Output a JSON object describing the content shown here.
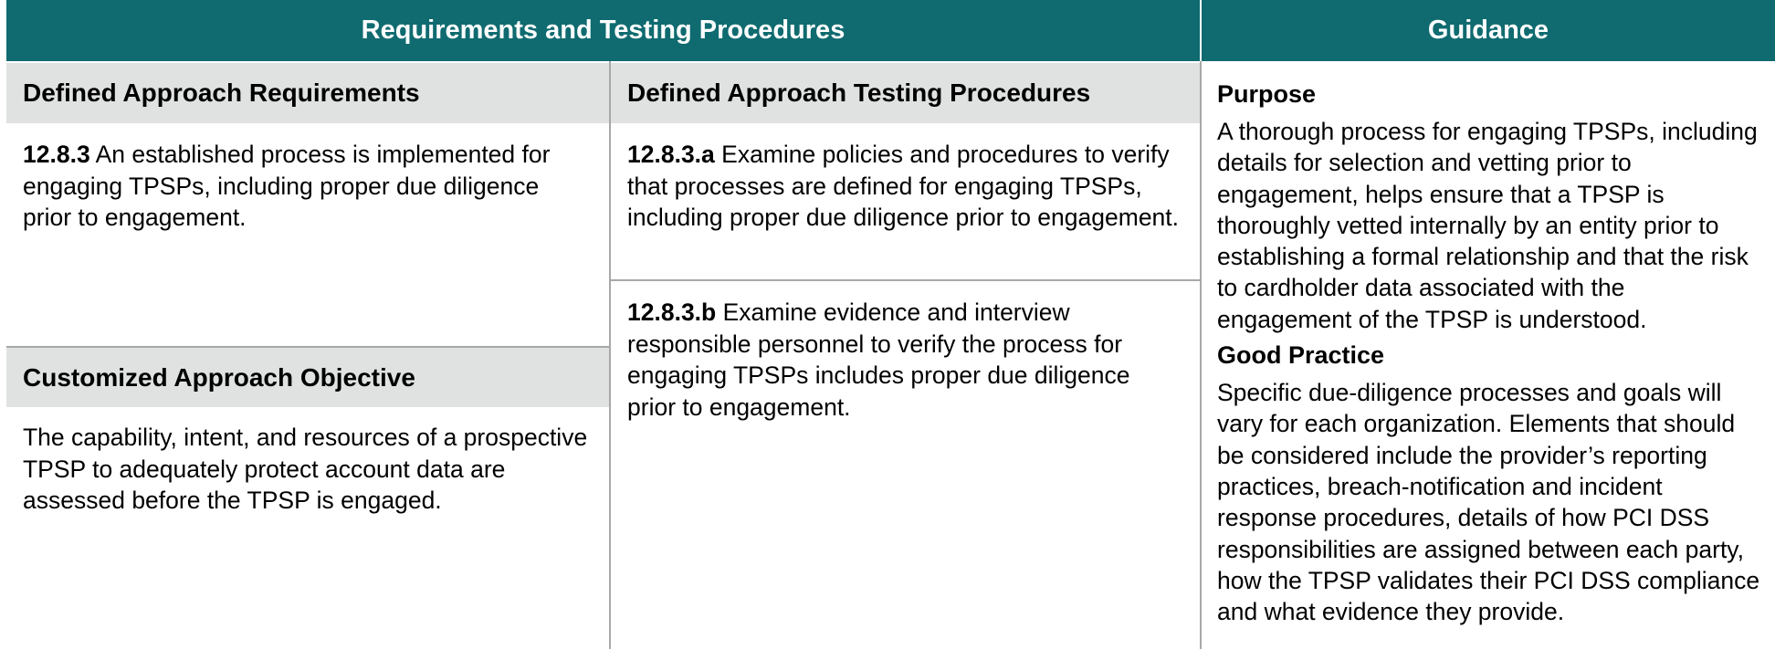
{
  "header": {
    "left_title": "Requirements and Testing Procedures",
    "right_title": "Guidance"
  },
  "requirements": {
    "heading": "Defined Approach Requirements",
    "req_id": "12.8.3",
    "req_text": " An established process is implemented for engaging TPSPs, including proper due diligence prior to engagement.",
    "custom_heading": "Customized Approach Objective",
    "custom_text": "The capability, intent, and resources of a prospective TPSP to adequately protect account data are assessed before the TPSP is engaged."
  },
  "testing": {
    "heading": "Defined Approach Testing Procedures",
    "procedures": [
      {
        "id": "12.8.3.a",
        "text": " Examine policies and procedures to verify that processes are defined for engaging TPSPs, including proper due diligence prior to engagement."
      },
      {
        "id": "12.8.3.b",
        "text": " Examine evidence and interview responsible personnel to verify the process for engaging TPSPs includes proper due diligence prior to engagement."
      }
    ]
  },
  "guidance": {
    "purpose_title": "Purpose",
    "purpose_text": "A thorough process for engaging TPSPs, including details for selection and vetting prior to engagement, helps ensure that a TPSP is thoroughly vetted internally by an entity prior to establishing a formal relationship and that the risk to cardholder data associated with the engagement of the TPSP is understood.",
    "good_practice_title": "Good Practice",
    "good_practice_text": "Specific due-diligence processes and goals will vary for each organization. Elements that should be considered include the provider’s reporting practices, breach-notification and incident response procedures, details of how PCI DSS responsibilities are assigned between each party, how the TPSP validates their PCI DSS compliance and what evidence they provide."
  },
  "colors": {
    "header_bg": "#0f6b70",
    "subheader_bg": "#e0e2e2",
    "rule": "#a8a8a8"
  }
}
